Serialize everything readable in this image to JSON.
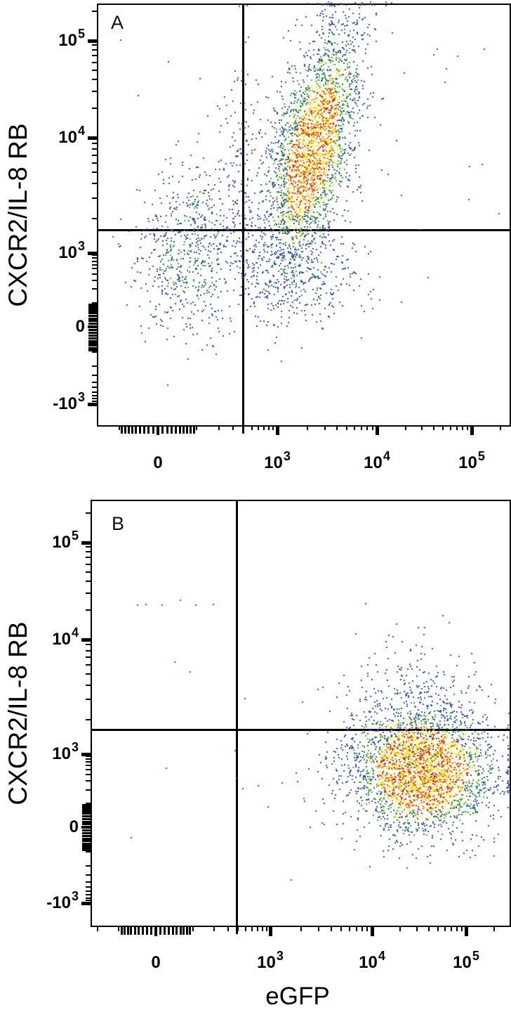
{
  "figure_labels": {
    "x_axis_title": "eGFP",
    "y_axis_title": "CXCR2/IL-8 RB"
  },
  "panels": [
    {
      "letter": "A"
    },
    {
      "letter": "B"
    }
  ],
  "palette": {
    "dot_blue": "#2d4da1",
    "dot_green": "#3da43d",
    "dot_yellow": "#f4e822",
    "dot_orange": "#ec8220",
    "dot_red": "#d62d16",
    "axis_color": "#000000",
    "background": "#ffffff"
  },
  "chart_data": [
    {
      "panel": "A",
      "type": "scatter",
      "subtype": "flow-cytometry-density-dot-plot",
      "scale": "biexponential",
      "x_label": "eGFP",
      "y_label": "CXCR2/IL-8 RB",
      "x_ticks": [
        {
          "value": 0,
          "label": "0"
        },
        {
          "value": 1000,
          "label": "10^3"
        },
        {
          "value": 10000,
          "label": "10^4"
        },
        {
          "value": 100000,
          "label": "10^5"
        }
      ],
      "y_ticks": [
        {
          "value": 100000,
          "label": "10^5"
        },
        {
          "value": 10000,
          "label": "10^4"
        },
        {
          "value": 1000,
          "label": "10^3"
        },
        {
          "value": 0,
          "label": "0"
        },
        {
          "value": -1000,
          "label": "-10^3"
        }
      ],
      "x_range": [
        -300,
        250000
      ],
      "y_range": [
        -2000,
        280000
      ],
      "grid": false,
      "legend": false,
      "quadrant_gate": {
        "x": 400,
        "y": 1600
      },
      "clusters": [
        {
          "name": "egfp-pos-cxcr2-pos-main",
          "x_center": 2200,
          "y_center": 7800,
          "x_sigma_dec": 0.25,
          "y_sigma_dec": 0.55,
          "rho": 0.55,
          "count": 3000
        },
        {
          "name": "egfp-neg-cxcr2-low",
          "x_center": 85,
          "y_center": 1150,
          "x_sigma_dec": 0.42,
          "y_sigma_dec": 0.37,
          "rho": 0.1,
          "count": 680
        },
        {
          "name": "gate-edge-streak",
          "x_center": 350,
          "y_center": 4500,
          "x_sigma_dec": 0.1,
          "y_sigma_dec": 0.55,
          "rho": 0,
          "count": 130
        },
        {
          "name": "below-gate-scatter",
          "x_center": 1600,
          "y_center": 350,
          "x_sigma_dec": 0.35,
          "y_sigma_dec": 0.45,
          "rho": 0,
          "count": 330
        },
        {
          "name": "background-noise",
          "type": "uniform",
          "x_range": [
            -150,
            200000
          ],
          "y_range": [
            250,
            150000
          ],
          "count": 55
        }
      ]
    },
    {
      "panel": "B",
      "type": "scatter",
      "subtype": "flow-cytometry-density-dot-plot",
      "scale": "biexponential",
      "x_label": "eGFP",
      "y_label": "CXCR2/IL-8 RB",
      "x_ticks": [
        {
          "value": 0,
          "label": "0"
        },
        {
          "value": 1000,
          "label": "10^3"
        },
        {
          "value": 10000,
          "label": "10^4"
        },
        {
          "value": 100000,
          "label": "10^5"
        }
      ],
      "y_ticks": [
        {
          "value": 100000,
          "label": "10^5"
        },
        {
          "value": 10000,
          "label": "10^4"
        },
        {
          "value": 1000,
          "label": "10^3"
        },
        {
          "value": 0,
          "label": "0"
        },
        {
          "value": -1000,
          "label": "-10^3"
        }
      ],
      "x_range": [
        -300,
        250000
      ],
      "y_range": [
        -2000,
        280000
      ],
      "grid": false,
      "legend": false,
      "quadrant_gate": {
        "x": 400,
        "y": 1600
      },
      "clusters": [
        {
          "name": "egfp-pos-cxcr2-neg-main",
          "x_center": 33000,
          "y_center": 520,
          "x_sigma_dec": 0.36,
          "y_sigma_dec": 0.6,
          "rho": 0,
          "count": 3000
        },
        {
          "name": "upper-tail-above-gate",
          "x_center": 30000,
          "y_center": 2600,
          "x_sigma_dec": 0.4,
          "y_sigma_dec": 0.32,
          "rho": 0,
          "count": 280
        },
        {
          "name": "left-tail",
          "x_center": 5500,
          "y_center": 400,
          "x_sigma_dec": 0.3,
          "y_sigma_dec": 0.55,
          "rho": 0,
          "count": 70
        },
        {
          "name": "background-noise",
          "type": "uniform",
          "x_range": [
            -150,
            200000
          ],
          "y_range": [
            -500,
            20000
          ],
          "count": 20
        },
        {
          "name": "stray-dots-upper-left",
          "type": "points",
          "points": [
            [
              -45,
              23000
            ],
            [
              -24,
              23500
            ],
            [
              13,
              23000
            ],
            [
              58,
              26000
            ],
            [
              108,
              23000
            ],
            [
              191,
              23500
            ]
          ]
        }
      ]
    }
  ]
}
